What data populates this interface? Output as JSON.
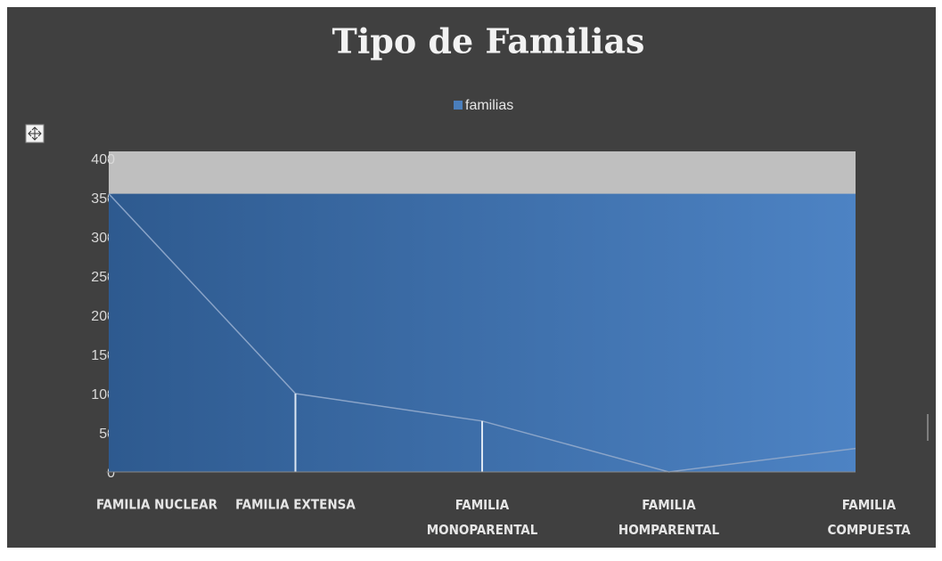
{
  "chart_data": {
    "type": "area",
    "title": "Tipo de Familias",
    "categories": [
      "FAMILIA NUCLEAR",
      "FAMILIA EXTENSA",
      "FAMILIA\nMONOPARENTAL",
      "FAMILIA\nHOMPARENTAL",
      "FAMILIA\nCOMPUESTA"
    ],
    "series": [
      {
        "name": "familias",
        "color": "#4a7ebb",
        "values": [
          355,
          100,
          65,
          0,
          30
        ]
      }
    ],
    "ylim": [
      0,
      400
    ],
    "yticks": [
      0,
      50,
      100,
      150,
      200,
      250,
      300,
      350,
      400
    ],
    "legend": "top"
  }
}
